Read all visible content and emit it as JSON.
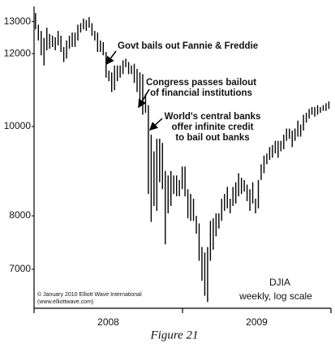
{
  "chart_data": {
    "type": "hilo",
    "color": "#000000",
    "log_scale": true,
    "ylim": [
      6350,
      13500
    ],
    "yticks": [
      7000,
      8000,
      10000,
      12000,
      13000
    ],
    "xlim": [
      2008,
      2010
    ],
    "xticks": [
      2008,
      2009,
      2010
    ],
    "x_labels": [
      {
        "value": 2008.5,
        "label": "2008"
      },
      {
        "value": 2009.5,
        "label": "2009"
      }
    ],
    "x": [
      2008.01,
      2008.029,
      2008.048,
      2008.067,
      2008.086,
      2008.105,
      2008.124,
      2008.143,
      2008.162,
      2008.181,
      2008.2,
      2008.219,
      2008.238,
      2008.257,
      2008.276,
      2008.295,
      2008.314,
      2008.333,
      2008.352,
      2008.371,
      2008.39,
      2008.409,
      2008.428,
      2008.447,
      2008.466,
      2008.485,
      2008.504,
      2008.523,
      2008.542,
      2008.561,
      2008.58,
      2008.599,
      2008.618,
      2008.637,
      2008.656,
      2008.675,
      2008.694,
      2008.713,
      2008.732,
      2008.751,
      2008.77,
      2008.789,
      2008.808,
      2008.827,
      2008.846,
      2008.865,
      2008.884,
      2008.903,
      2008.922,
      2008.941,
      2008.96,
      2008.979,
      2008.998,
      2009.017,
      2009.036,
      2009.055,
      2009.074,
      2009.093,
      2009.112,
      2009.131,
      2009.15,
      2009.169,
      2009.188,
      2009.207,
      2009.226,
      2009.245,
      2009.264,
      2009.283,
      2009.302,
      2009.321,
      2009.34,
      2009.359,
      2009.378,
      2009.397,
      2009.416,
      2009.435,
      2009.454,
      2009.473,
      2009.492,
      2009.511,
      2009.53,
      2009.549,
      2009.568,
      2009.587,
      2009.606,
      2009.625,
      2009.644,
      2009.663,
      2009.682,
      2009.701,
      2009.72,
      2009.739,
      2009.758,
      2009.777,
      2009.796,
      2009.815,
      2009.834,
      2009.853,
      2009.872,
      2009.891,
      2009.91,
      2009.929,
      2009.948,
      2009.967,
      2009.986
    ],
    "high": [
      13280,
      12900,
      12700,
      12480,
      12800,
      12600,
      12550,
      12500,
      12700,
      12550,
      12200,
      12400,
      12550,
      12650,
      12650,
      12900,
      12950,
      13100,
      13050,
      13150,
      12950,
      12700,
      12650,
      12400,
      12350,
      12050,
      11500,
      11450,
      11650,
      11650,
      11650,
      11800,
      11850,
      11750,
      11650,
      11700,
      11550,
      11450,
      11400,
      10850,
      10550,
      9800,
      9400,
      9700,
      9700,
      9600,
      8950,
      8850,
      8950,
      8850,
      8850,
      8750,
      9050,
      9050,
      8550,
      8450,
      8350,
      8000,
      7850,
      7400,
      7300,
      7400,
      7900,
      7950,
      8050,
      8050,
      8350,
      8450,
      8600,
      8350,
      8600,
      8700,
      8900,
      8800,
      8750,
      8650,
      8550,
      8700,
      8350,
      8750,
      9100,
      9300,
      9350,
      9500,
      9550,
      9650,
      9650,
      9650,
      9800,
      9950,
      9950,
      9900,
      9950,
      10150,
      10050,
      10300,
      10350,
      10450,
      10500,
      10500,
      10550,
      10500,
      10550,
      10600,
      10650
    ],
    "low": [
      12750,
      12400,
      11950,
      11650,
      12100,
      12150,
      12200,
      12100,
      12250,
      12050,
      11750,
      11850,
      12150,
      12200,
      12200,
      12400,
      12650,
      12750,
      12700,
      12800,
      12550,
      12400,
      12050,
      12050,
      11950,
      11300,
      11200,
      10900,
      10950,
      11200,
      11300,
      11400,
      11600,
      11400,
      11400,
      11150,
      10900,
      10600,
      10300,
      10350,
      8450,
      7880,
      8200,
      8100,
      8700,
      8550,
      7450,
      8050,
      8200,
      8450,
      8400,
      8400,
      8550,
      8400,
      7950,
      7900,
      7900,
      7650,
      7150,
      6800,
      6550,
      6450,
      7150,
      7350,
      7600,
      7750,
      7900,
      8100,
      8150,
      8050,
      8200,
      8250,
      8400,
      8450,
      8500,
      8300,
      8100,
      8250,
      8050,
      8150,
      8750,
      8900,
      9100,
      9200,
      9250,
      9350,
      9250,
      9400,
      9450,
      9650,
      9700,
      9500,
      9650,
      9750,
      9750,
      9900,
      10100,
      10200,
      10300,
      10250,
      10300,
      10350,
      10400,
      10400,
      10450
    ],
    "annotations": [
      "Govt bails out Fannie & Freddie",
      "Congress passes bailout",
      "of financial institutions",
      "World's central banks",
      "offer infinite credit",
      "to bail out banks",
      "DJIA",
      "weekly, log scale",
      "© January 2010 Elliott Wave International",
      "(www.elliottwave.com)"
    ],
    "caption": "Figure 21"
  }
}
